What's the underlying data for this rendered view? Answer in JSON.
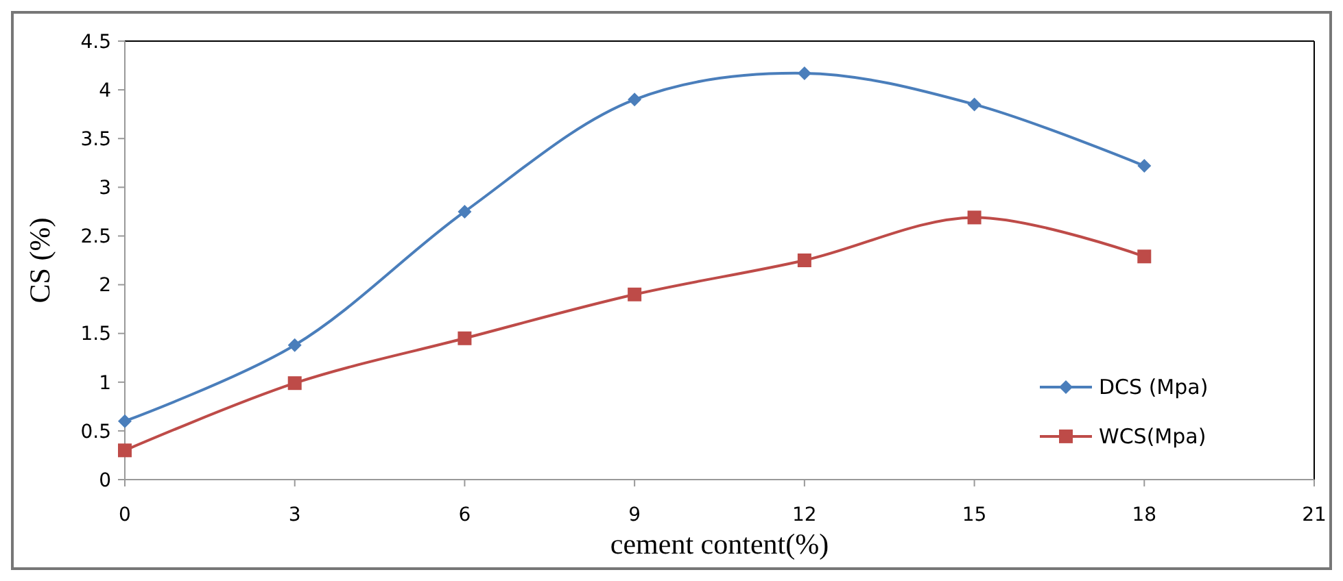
{
  "chart_data": {
    "type": "line",
    "xlabel": "cement content(%)",
    "ylabel": "CS (%)",
    "x": [
      0,
      3,
      6,
      9,
      12,
      15,
      18
    ],
    "xlim": [
      0,
      21
    ],
    "xticks": [
      0,
      3,
      6,
      9,
      12,
      15,
      18,
      21
    ],
    "ylim": [
      0,
      4.5
    ],
    "yticks": [
      0,
      0.5,
      1,
      1.5,
      2,
      2.5,
      3,
      3.5,
      4,
      4.5
    ],
    "grid": false,
    "legend": "right",
    "series": [
      {
        "name": "DCS (Mpa)",
        "color": "#4a7ebb",
        "marker": "diamond",
        "values": [
          0.6,
          1.38,
          2.75,
          3.9,
          4.17,
          3.85,
          3.22
        ]
      },
      {
        "name": "WCS(Mpa)",
        "color": "#be4b48",
        "marker": "square",
        "values": [
          0.3,
          0.99,
          1.45,
          1.9,
          2.25,
          2.69,
          2.29
        ]
      }
    ]
  }
}
